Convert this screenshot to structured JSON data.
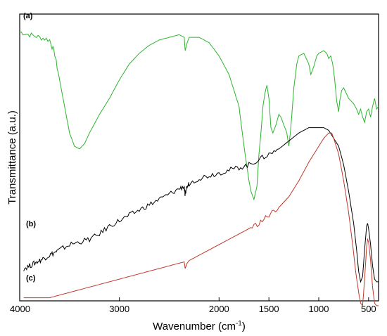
{
  "chart_data": {
    "type": "line",
    "xlabel": "Wavenumber (cm",
    "xlabel_sup": "-1",
    "xlabel_close": ")",
    "ylabel": "Transmittance (a.u.)",
    "xlim": [
      4000,
      400
    ],
    "xticks": [
      4000,
      3000,
      2000,
      1500,
      1000,
      500
    ],
    "xtick_labels": [
      "4000",
      "3000",
      "2000",
      "1500",
      "1000",
      "500"
    ],
    "grid": false,
    "series": [
      {
        "name": "(a)",
        "color": "#2db52d",
        "points": [
          [
            4000,
            0.98
          ],
          [
            3900,
            0.97
          ],
          [
            3800,
            0.96
          ],
          [
            3700,
            0.95
          ],
          [
            3650,
            0.9
          ],
          [
            3600,
            0.8
          ],
          [
            3550,
            0.7
          ],
          [
            3500,
            0.6
          ],
          [
            3450,
            0.55
          ],
          [
            3400,
            0.54
          ],
          [
            3350,
            0.56
          ],
          [
            3300,
            0.6
          ],
          [
            3200,
            0.67
          ],
          [
            3100,
            0.73
          ],
          [
            3000,
            0.8
          ],
          [
            2900,
            0.86
          ],
          [
            2800,
            0.9
          ],
          [
            2700,
            0.93
          ],
          [
            2600,
            0.95
          ],
          [
            2500,
            0.96
          ],
          [
            2400,
            0.97
          ],
          [
            2350,
            0.96
          ],
          [
            2340,
            0.91
          ],
          [
            2320,
            0.94
          ],
          [
            2300,
            0.96
          ],
          [
            2200,
            0.96
          ],
          [
            2100,
            0.94
          ],
          [
            2000,
            0.89
          ],
          [
            1900,
            0.82
          ],
          [
            1850,
            0.76
          ],
          [
            1800,
            0.7
          ],
          [
            1750,
            0.55
          ],
          [
            1700,
            0.42
          ],
          [
            1680,
            0.38
          ],
          [
            1650,
            0.35
          ],
          [
            1620,
            0.4
          ],
          [
            1600,
            0.52
          ],
          [
            1580,
            0.6
          ],
          [
            1560,
            0.7
          ],
          [
            1540,
            0.75
          ],
          [
            1520,
            0.78
          ],
          [
            1500,
            0.73
          ],
          [
            1480,
            0.62
          ],
          [
            1460,
            0.6
          ],
          [
            1430,
            0.63
          ],
          [
            1400,
            0.67
          ],
          [
            1380,
            0.66
          ],
          [
            1350,
            0.63
          ],
          [
            1320,
            0.6
          ],
          [
            1300,
            0.55
          ],
          [
            1280,
            0.62
          ],
          [
            1250,
            0.77
          ],
          [
            1220,
            0.86
          ],
          [
            1200,
            0.89
          ],
          [
            1150,
            0.9
          ],
          [
            1100,
            0.86
          ],
          [
            1080,
            0.82
          ],
          [
            1050,
            0.85
          ],
          [
            1020,
            0.89
          ],
          [
            1000,
            0.9
          ],
          [
            950,
            0.91
          ],
          [
            920,
            0.9
          ],
          [
            900,
            0.88
          ],
          [
            880,
            0.89
          ],
          [
            860,
            0.86
          ],
          [
            840,
            0.8
          ],
          [
            820,
            0.72
          ],
          [
            800,
            0.68
          ],
          [
            790,
            0.72
          ],
          [
            770,
            0.76
          ],
          [
            750,
            0.77
          ],
          [
            700,
            0.73
          ],
          [
            650,
            0.71
          ],
          [
            620,
            0.69
          ],
          [
            600,
            0.67
          ],
          [
            580,
            0.69
          ],
          [
            560,
            0.66
          ],
          [
            540,
            0.64
          ],
          [
            520,
            0.68
          ],
          [
            500,
            0.69
          ],
          [
            480,
            0.66
          ],
          [
            460,
            0.7
          ],
          [
            440,
            0.73
          ],
          [
            420,
            0.69
          ],
          [
            400,
            0.7
          ]
        ]
      },
      {
        "name": "(b)",
        "color": "#000000",
        "points": [
          [
            3960,
            0.09
          ],
          [
            3900,
            0.1
          ],
          [
            3850,
            0.11
          ],
          [
            3800,
            0.12
          ],
          [
            3750,
            0.13
          ],
          [
            3700,
            0.14
          ],
          [
            3650,
            0.15
          ],
          [
            3600,
            0.16
          ],
          [
            3500,
            0.18
          ],
          [
            3400,
            0.19
          ],
          [
            3300,
            0.2
          ],
          [
            3200,
            0.22
          ],
          [
            3100,
            0.25
          ],
          [
            3000,
            0.27
          ],
          [
            2900,
            0.29
          ],
          [
            2800,
            0.31
          ],
          [
            2700,
            0.33
          ],
          [
            2600,
            0.35
          ],
          [
            2500,
            0.37
          ],
          [
            2400,
            0.39
          ],
          [
            2350,
            0.4
          ],
          [
            2340,
            0.36
          ],
          [
            2330,
            0.39
          ],
          [
            2300,
            0.41
          ],
          [
            2200,
            0.43
          ],
          [
            2100,
            0.44
          ],
          [
            2000,
            0.45
          ],
          [
            1900,
            0.46
          ],
          [
            1800,
            0.47
          ],
          [
            1700,
            0.48
          ],
          [
            1600,
            0.5
          ],
          [
            1500,
            0.52
          ],
          [
            1400,
            0.54
          ],
          [
            1300,
            0.57
          ],
          [
            1200,
            0.6
          ],
          [
            1100,
            0.62
          ],
          [
            1000,
            0.62
          ],
          [
            950,
            0.62
          ],
          [
            900,
            0.61
          ],
          [
            850,
            0.58
          ],
          [
            800,
            0.55
          ],
          [
            750,
            0.48
          ],
          [
            700,
            0.38
          ],
          [
            650,
            0.26
          ],
          [
            620,
            0.16
          ],
          [
            600,
            0.08
          ],
          [
            580,
            0.04
          ],
          [
            560,
            0.06
          ],
          [
            540,
            0.16
          ],
          [
            520,
            0.25
          ],
          [
            510,
            0.26
          ],
          [
            500,
            0.24
          ],
          [
            480,
            0.18
          ],
          [
            460,
            0.1
          ],
          [
            440,
            0.05
          ],
          [
            420,
            0.04
          ],
          [
            400,
            0.04
          ]
        ]
      },
      {
        "name": "(c)",
        "color": "#c0392b",
        "points": [
          [
            3960,
            -0.02
          ],
          [
            3800,
            -0.02
          ],
          [
            3700,
            -0.02
          ],
          [
            3600,
            -0.01
          ],
          [
            3500,
            0
          ],
          [
            3400,
            0.01
          ],
          [
            3300,
            0.02
          ],
          [
            3200,
            0.03
          ],
          [
            3100,
            0.04
          ],
          [
            3000,
            0.05
          ],
          [
            2900,
            0.06
          ],
          [
            2800,
            0.07
          ],
          [
            2700,
            0.08
          ],
          [
            2600,
            0.09
          ],
          [
            2500,
            0.1
          ],
          [
            2400,
            0.11
          ],
          [
            2350,
            0.115
          ],
          [
            2340,
            0.09
          ],
          [
            2320,
            0.11
          ],
          [
            2300,
            0.12
          ],
          [
            2200,
            0.14
          ],
          [
            2100,
            0.16
          ],
          [
            2000,
            0.18
          ],
          [
            1900,
            0.2
          ],
          [
            1800,
            0.22
          ],
          [
            1700,
            0.24
          ],
          [
            1600,
            0.26
          ],
          [
            1500,
            0.29
          ],
          [
            1400,
            0.32
          ],
          [
            1300,
            0.36
          ],
          [
            1200,
            0.42
          ],
          [
            1100,
            0.49
          ],
          [
            1000,
            0.55
          ],
          [
            950,
            0.58
          ],
          [
            900,
            0.6
          ],
          [
            870,
            0.6
          ],
          [
            850,
            0.58
          ],
          [
            800,
            0.52
          ],
          [
            750,
            0.42
          ],
          [
            700,
            0.3
          ],
          [
            660,
            0.18
          ],
          [
            630,
            0.08
          ],
          [
            600,
            0
          ],
          [
            580,
            -0.04
          ],
          [
            560,
            -0.05
          ],
          [
            540,
            0.05
          ],
          [
            520,
            0.17
          ],
          [
            510,
            0.2
          ],
          [
            500,
            0.19
          ],
          [
            480,
            0.12
          ],
          [
            460,
            0.02
          ],
          [
            440,
            -0.04
          ],
          [
            420,
            -0.05
          ],
          [
            400,
            -0.05
          ]
        ]
      }
    ]
  }
}
